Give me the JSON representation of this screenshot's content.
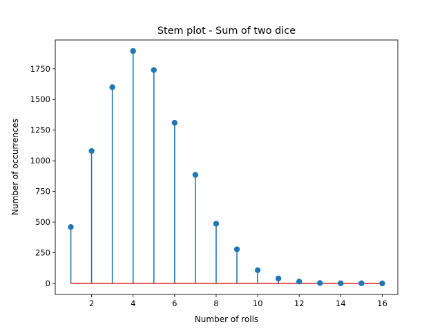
{
  "chart_data": {
    "type": "stem",
    "title": "Stem plot - Sum of two dice",
    "xlabel": "Number of rolls",
    "ylabel": "Number of occurrences",
    "xlim": [
      0.25,
      16.75
    ],
    "ylim": [
      -90,
      1985
    ],
    "xticks": [
      2,
      4,
      6,
      8,
      10,
      12,
      14,
      16
    ],
    "xtick_labels": [
      "2",
      "4",
      "6",
      "8",
      "10",
      "12",
      "14",
      "16"
    ],
    "yticks": [
      0,
      250,
      500,
      750,
      1000,
      1250,
      1500,
      1750
    ],
    "ytick_labels": [
      "0",
      "250",
      "500",
      "750",
      "1000",
      "1250",
      "1500",
      "1750"
    ],
    "grid": false,
    "legend": false,
    "baseline": 0,
    "colors": {
      "stem": "#1f77b4",
      "marker": "#1f77b4",
      "baseline": "#d62728"
    },
    "series": [
      {
        "x": [
          1,
          2,
          3,
          4,
          5,
          6,
          7,
          8,
          9,
          10,
          11,
          12,
          13,
          14,
          15,
          16
        ],
        "values": [
          460,
          1080,
          1600,
          1895,
          1740,
          1310,
          885,
          487,
          278,
          108,
          40,
          15,
          3,
          1,
          1,
          0
        ]
      }
    ]
  }
}
